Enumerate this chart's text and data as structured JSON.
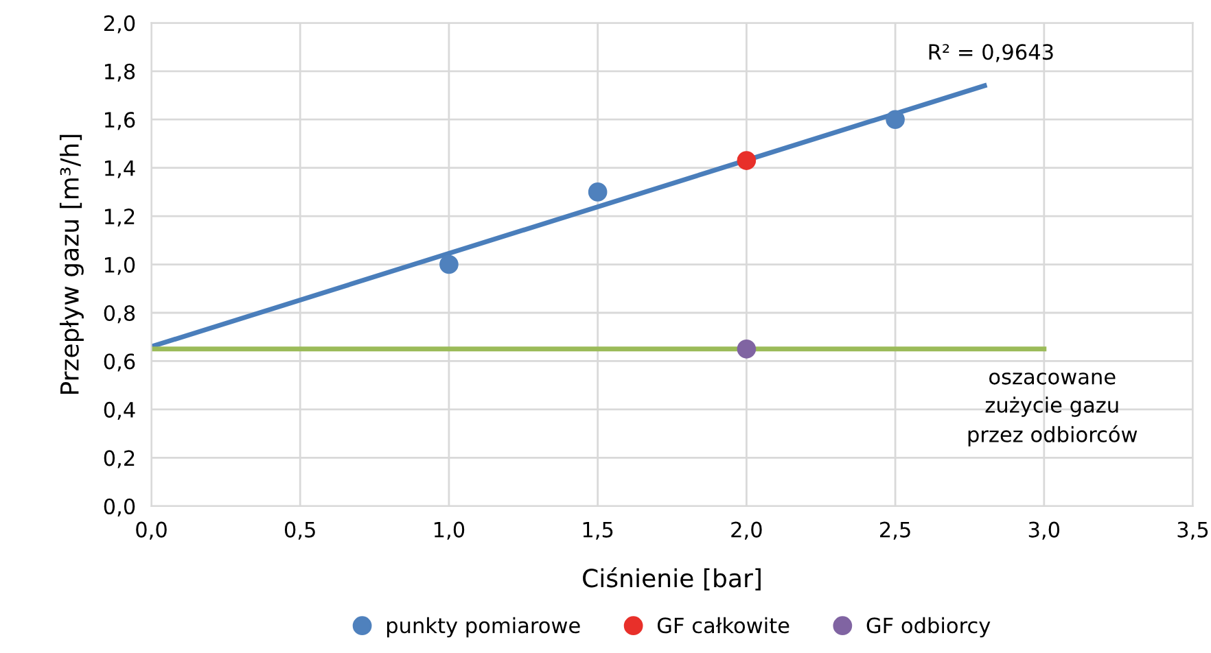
{
  "chart_data": {
    "type": "scatter",
    "xlabel": "Ciśnienie [bar]",
    "ylabel": "Przepływ gazu [m³/h]",
    "xlim": [
      0,
      3.5
    ],
    "ylim": [
      0,
      2.0
    ],
    "xticks": [
      {
        "value": 0,
        "label": "0,0"
      },
      {
        "value": 0.5,
        "label": "0,5"
      },
      {
        "value": 1.0,
        "label": "1,0"
      },
      {
        "value": 1.5,
        "label": "1,5"
      },
      {
        "value": 2.0,
        "label": "2,0"
      },
      {
        "value": 2.5,
        "label": "2,5"
      },
      {
        "value": 3.0,
        "label": "3,0"
      },
      {
        "value": 3.5,
        "label": "3,5"
      }
    ],
    "yticks": [
      {
        "value": 0,
        "label": "0,0"
      },
      {
        "value": 0.2,
        "label": "0,2"
      },
      {
        "value": 0.4,
        "label": "0,4"
      },
      {
        "value": 0.6,
        "label": "0,6"
      },
      {
        "value": 0.8,
        "label": "0,8"
      },
      {
        "value": 1.0,
        "label": "1,0"
      },
      {
        "value": 1.2,
        "label": "1,2"
      },
      {
        "value": 1.4,
        "label": "1,4"
      },
      {
        "value": 1.6,
        "label": "1,6"
      },
      {
        "value": 1.8,
        "label": "1,8"
      },
      {
        "value": 2.0,
        "label": "2,0"
      }
    ],
    "grid": true,
    "legend": "bottom",
    "marker": "circle",
    "series": [
      {
        "type": "line",
        "color": "#4a7ebb",
        "x": [
          0,
          2.8
        ],
        "values": [
          0.66,
          1.74
        ],
        "marker": "none"
      },
      {
        "type": "line",
        "color": "#9bbb59",
        "x": [
          0,
          3.0
        ],
        "values": [
          0.65,
          0.65
        ],
        "marker": "none"
      },
      {
        "name": "punkty pomiarowe",
        "color": "#4f81bd",
        "x": [
          1.0,
          1.5,
          2.5
        ],
        "values": [
          1.0,
          1.3,
          1.6
        ]
      },
      {
        "name": "GF całkowite",
        "color": "#e8302a",
        "x": [
          2.0
        ],
        "values": [
          1.43
        ]
      },
      {
        "name": "GF odbiorcy",
        "color": "#8064a2",
        "x": [
          2.0
        ],
        "values": [
          0.65
        ]
      }
    ],
    "annotations": [
      "R² = 0,9643",
      "oszacowane\nzużycie gazu\nprzez odbiorców"
    ]
  }
}
